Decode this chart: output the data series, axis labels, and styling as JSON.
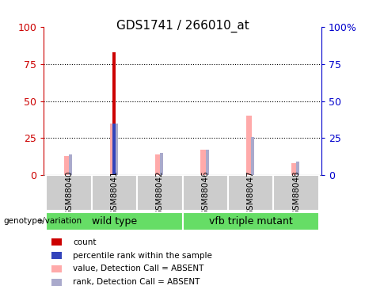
{
  "title": "GDS1741 / 266010_at",
  "samples": [
    "GSM88040",
    "GSM88041",
    "GSM88042",
    "GSM88046",
    "GSM88047",
    "GSM88048"
  ],
  "red_bars": [
    0,
    83,
    0,
    0,
    0,
    0
  ],
  "blue_bars": [
    0,
    35,
    0,
    0,
    0,
    0
  ],
  "pink_bars": [
    13,
    35,
    14,
    17,
    40,
    8
  ],
  "lightblue_bars": [
    14,
    35,
    15,
    17,
    26,
    9
  ],
  "ylim": [
    0,
    100
  ],
  "yticks": [
    0,
    25,
    50,
    75,
    100
  ],
  "red_color": "#CC0000",
  "blue_color": "#3344BB",
  "pink_color": "#FFAAAA",
  "lightblue_color": "#AAAACC",
  "green_color": "#66DD66",
  "gray_color": "#CCCCCC",
  "tick_left_color": "#CC0000",
  "tick_right_color": "#0000CC",
  "title_fontsize": 11,
  "group_label": "genotype/variation",
  "wt_label": "wild type",
  "vfb_label": "vfb triple mutant",
  "legend_items": [
    {
      "color": "#CC0000",
      "label": "count"
    },
    {
      "color": "#3344BB",
      "label": "percentile rank within the sample"
    },
    {
      "color": "#FFAAAA",
      "label": "value, Detection Call = ABSENT"
    },
    {
      "color": "#AAAACC",
      "label": "rank, Detection Call = ABSENT"
    }
  ]
}
